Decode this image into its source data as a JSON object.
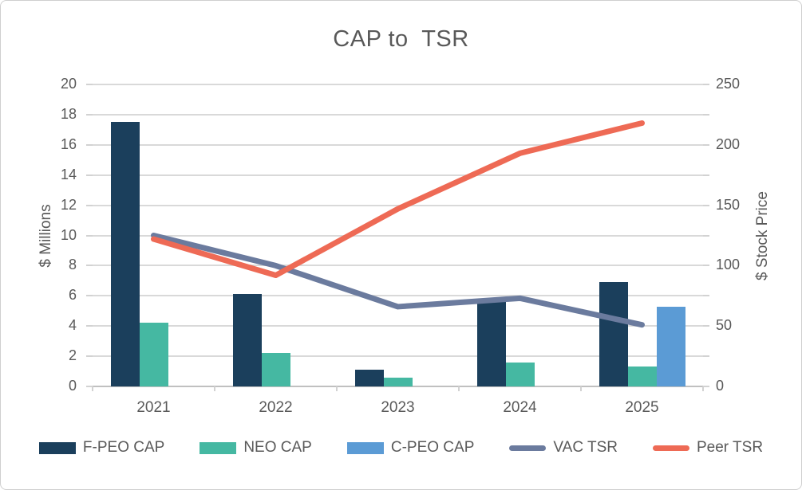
{
  "chart_data": {
    "type": "combo",
    "title": "CAP to  TSR",
    "categories": [
      "2021",
      "2022",
      "2023",
      "2024",
      "2025"
    ],
    "series": [
      {
        "name": "F-PEO CAP",
        "kind": "bar",
        "axis": "left",
        "color": "#1b3f5c",
        "values": [
          17.5,
          6.1,
          1.1,
          5.6,
          6.9
        ]
      },
      {
        "name": "NEO CAP",
        "kind": "bar",
        "axis": "left",
        "color": "#45b8a2",
        "values": [
          4.2,
          2.2,
          0.6,
          1.6,
          1.3
        ]
      },
      {
        "name": "C-PEO CAP",
        "kind": "bar",
        "axis": "left",
        "color": "#5b9bd5",
        "values": [
          null,
          null,
          null,
          null,
          5.3
        ]
      },
      {
        "name": "VAC TSR",
        "kind": "line",
        "axis": "right",
        "color": "#6b7b9e",
        "values": [
          125,
          100,
          66,
          73,
          51
        ]
      },
      {
        "name": "Peer TSR",
        "kind": "line",
        "axis": "right",
        "color": "#ee6a55",
        "values": [
          122,
          92,
          147,
          193,
          218
        ]
      }
    ],
    "left_axis": {
      "label": "$ Millions",
      "min": 0,
      "max": 20,
      "label_step": 2,
      "tick_step": 2
    },
    "right_axis": {
      "label": "$ Stock Price",
      "min": 0,
      "max": 250,
      "label_step": 50,
      "tick_step": 25
    },
    "grid": true,
    "legend_position": "bottom"
  },
  "colors": {
    "grid": "#d9d9d9",
    "baseline": "#c0c0c0",
    "text": "#595959",
    "border": "#cfcfcf"
  }
}
